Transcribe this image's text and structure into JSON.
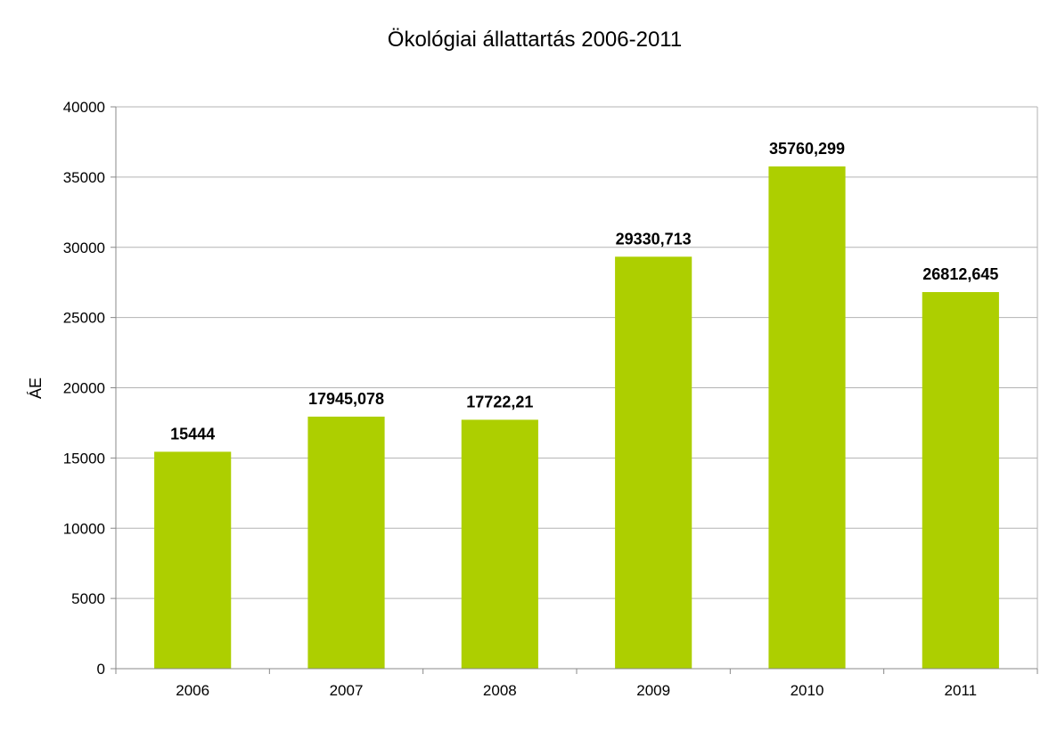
{
  "chart_data": {
    "type": "bar",
    "title": "Ökológiai állattartás 2006-2011",
    "xlabel": "",
    "ylabel": "ÁE",
    "categories": [
      "2006",
      "2007",
      "2008",
      "2009",
      "2010",
      "2011"
    ],
    "values": [
      15444,
      17945.078,
      17722.21,
      29330.713,
      35760.299,
      26812.645
    ],
    "data_labels": [
      "15444",
      "17945,078",
      "17722,21",
      "29330,713",
      "35760,299",
      "26812,645"
    ],
    "ylim": [
      0,
      40000
    ],
    "yticks": [
      0,
      5000,
      10000,
      15000,
      20000,
      25000,
      30000,
      35000,
      40000
    ],
    "ytick_labels": [
      "0",
      "5000",
      "10000",
      "15000",
      "20000",
      "25000",
      "30000",
      "35000",
      "40000"
    ],
    "grid": true,
    "legend": "none",
    "bar_color": "#adcf00",
    "grid_color": "#b3b3b3"
  }
}
